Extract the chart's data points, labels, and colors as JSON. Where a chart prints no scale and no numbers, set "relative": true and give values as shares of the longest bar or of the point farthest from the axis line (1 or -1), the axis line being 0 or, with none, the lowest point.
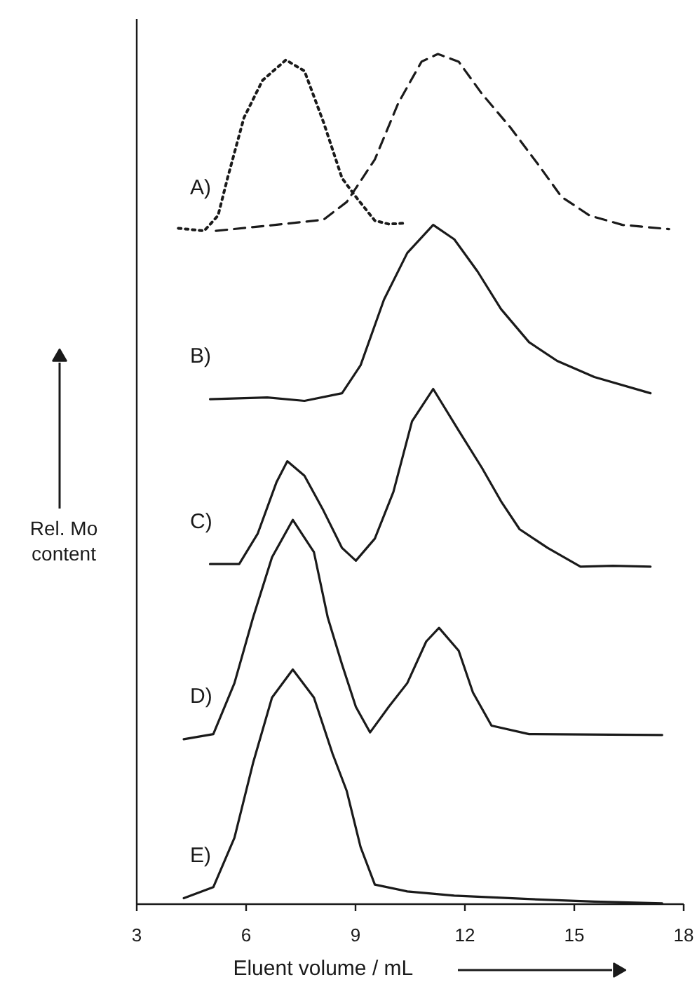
{
  "chart_data": {
    "type": "line",
    "relative": true,
    "xlabel": "Eluent  volume / mL",
    "ylabel": "Rel. Mo content",
    "xlim": [
      3,
      18
    ],
    "xticks": [
      3,
      6,
      9,
      12,
      15,
      18
    ],
    "grid": false,
    "marker": "none",
    "series": [
      {
        "color": "#1a1a1a",
        "line_style": "dotted",
        "x": [
          4.14,
          4.85,
          5.23,
          5.49,
          5.94,
          6.45,
          7.09,
          7.6,
          8.12,
          8.63,
          9.01,
          9.53,
          9.91,
          10.36
        ],
        "values": [
          0.795,
          0.792,
          0.81,
          0.854,
          0.925,
          0.969,
          0.993,
          0.98,
          0.92,
          0.854,
          0.832,
          0.804,
          0.8,
          0.801
        ]
      },
      {
        "color": "#1a1a1a",
        "line_style": "dashed",
        "x": [
          5.17,
          6.58,
          8.12,
          8.76,
          9.53,
          10.17,
          10.81,
          11.26,
          11.83,
          12.47,
          13.24,
          14.01,
          14.65,
          15.42,
          16.32,
          17.6
        ],
        "values": [
          0.792,
          0.798,
          0.805,
          0.826,
          0.876,
          0.942,
          0.991,
          1.0,
          0.991,
          0.953,
          0.914,
          0.87,
          0.832,
          0.81,
          0.799,
          0.794
        ]
      },
      {
        "color": "#1a1a1a",
        "line_style": "solid",
        "x": [
          5.01,
          6.58,
          7.6,
          8.63,
          9.14,
          9.78,
          10.42,
          11.13,
          11.71,
          12.35,
          12.99,
          13.76,
          14.53,
          15.55,
          17.09
        ],
        "values": [
          0.594,
          0.596,
          0.592,
          0.601,
          0.634,
          0.711,
          0.766,
          0.799,
          0.782,
          0.744,
          0.7,
          0.661,
          0.639,
          0.62,
          0.601
        ]
      },
      {
        "color": "#1a1a1a",
        "line_style": "solid",
        "x": [
          5.01,
          5.81,
          6.32,
          6.83,
          7.13,
          7.6,
          8.12,
          8.63,
          9.01,
          9.53,
          10.04,
          10.55,
          11.13,
          11.83,
          12.47,
          12.99,
          13.5,
          14.27,
          15.17,
          16.06,
          17.09
        ],
        "values": [
          0.4,
          0.4,
          0.436,
          0.496,
          0.521,
          0.504,
          0.463,
          0.419,
          0.404,
          0.43,
          0.485,
          0.568,
          0.606,
          0.557,
          0.513,
          0.474,
          0.441,
          0.419,
          0.397,
          0.398,
          0.397
        ]
      },
      {
        "color": "#1a1a1a",
        "line_style": "solid",
        "x": [
          4.29,
          5.1,
          5.68,
          6.19,
          6.71,
          7.28,
          7.86,
          8.24,
          8.63,
          9.01,
          9.4,
          9.91,
          10.42,
          10.94,
          11.29,
          11.83,
          12.22,
          12.73,
          13.76,
          17.41
        ],
        "values": [
          0.194,
          0.2,
          0.26,
          0.337,
          0.408,
          0.452,
          0.414,
          0.337,
          0.282,
          0.232,
          0.202,
          0.232,
          0.26,
          0.309,
          0.325,
          0.298,
          0.249,
          0.21,
          0.2,
          0.199
        ]
      },
      {
        "color": "#1a1a1a",
        "line_style": "solid",
        "x": [
          4.29,
          5.1,
          5.68,
          6.19,
          6.71,
          7.28,
          7.86,
          8.37,
          8.76,
          9.14,
          9.53,
          10.42,
          11.71,
          14.27,
          15.55,
          17.41
        ],
        "values": [
          0.007,
          0.02,
          0.078,
          0.166,
          0.243,
          0.276,
          0.243,
          0.177,
          0.133,
          0.067,
          0.023,
          0.015,
          0.01,
          0.005,
          0.003,
          0.001
        ]
      }
    ],
    "annotations": [
      "A)",
      "B)",
      "C)",
      "D)",
      "E)"
    ]
  }
}
